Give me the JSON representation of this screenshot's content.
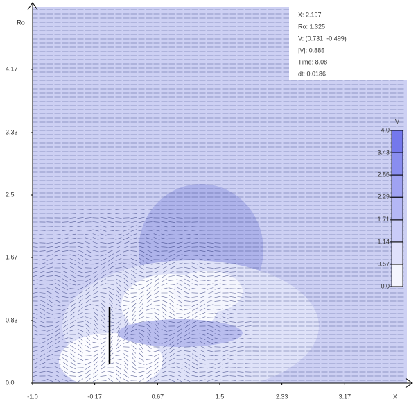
{
  "chart_data": {
    "type": "vector_field",
    "xlabel": "X",
    "ylabel": "Ro",
    "xlim": [
      -1,
      4
    ],
    "ylim": [
      0,
      5
    ],
    "xticks": [
      {
        "value": -1,
        "label": "-1.0"
      },
      -0.17,
      0.67,
      1.5,
      2.33,
      3.17
    ],
    "yticks": [
      {
        "value": 0,
        "label": "0.0"
      },
      0.83,
      1.67,
      2.5,
      3.33,
      4.17
    ],
    "annotations": [
      "X: 2.197",
      "Ro: 1.325",
      "V: (0.731, -0.499)",
      "|V|: 0.885",
      "Time: 8.08",
      "dt: 0.0186"
    ],
    "colorbar": {
      "label": "V",
      "lim": [
        0,
        4
      ],
      "ticks": [
        {
          "value": 0,
          "label": "0.0"
        },
        0.57,
        1.14,
        1.71,
        2.29,
        2.86,
        3.43,
        {
          "value": 4,
          "label": "4.0"
        }
      ]
    }
  }
}
